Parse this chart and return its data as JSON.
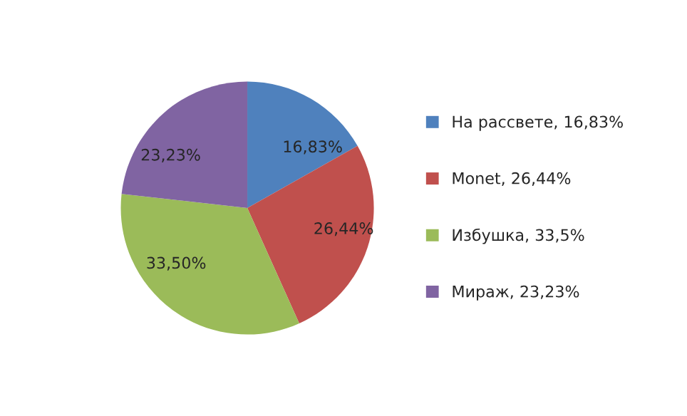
{
  "chart_data": {
    "type": "pie",
    "categories": [
      "На рассвете, 16,83%",
      "Monet, 26,44%",
      "Избушка, 33,5%",
      "Мираж, 23,23%"
    ],
    "values": [
      16.83,
      26.44,
      33.5,
      23.23
    ],
    "value_labels": [
      "16,83%",
      "26,44%",
      "33,50%",
      "23,23%"
    ],
    "colors": [
      "#4f81bd",
      "#c0504d",
      "#9bbb59",
      "#8064a2"
    ],
    "legend": "right"
  }
}
